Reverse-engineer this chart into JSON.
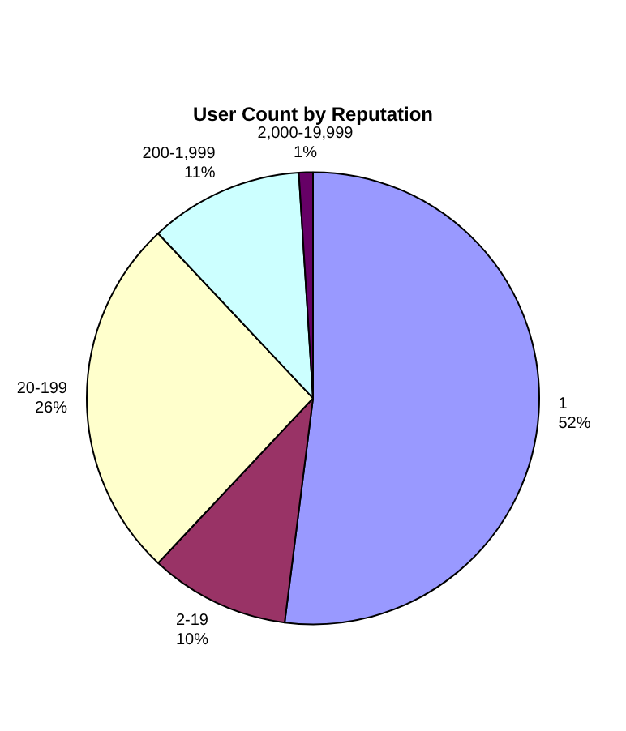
{
  "chart_data": {
    "type": "pie",
    "title": "User Count by Reputation",
    "categories": [
      "1",
      "2-19",
      "20-199",
      "200-1,999",
      "2,000-19,999"
    ],
    "values": [
      52,
      10,
      26,
      11,
      1
    ],
    "value_labels": [
      "52%",
      "10%",
      "26%",
      "11%",
      "1%"
    ],
    "colors": [
      "#9999ff",
      "#993366",
      "#ffffcc",
      "#ccffff",
      "#660066"
    ],
    "legend": false
  }
}
